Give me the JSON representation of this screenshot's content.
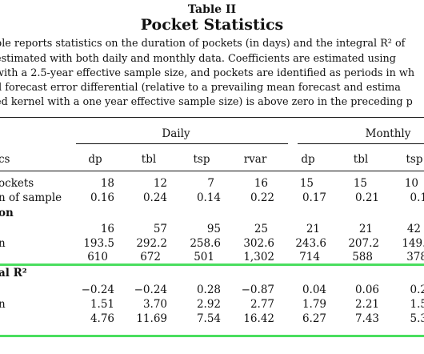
{
  "header": {
    "label": "Table II",
    "title": "Pocket Statistics"
  },
  "caption": [
    "ble reports statistics on the duration of pockets (in days) and the integral R² of",
    "estimated with both daily and monthly data. Coefficients are estimated using",
    "with a 2.5-year effective sample size, and pockets are identified as periods in wh",
    "d forecast error differential (relative to a prevailing mean forecast and estima",
    "ed kernel with a one year effective sample size) is above zero in the preceding p"
  ],
  "groups": {
    "daily": "Daily",
    "monthly": "Monthly"
  },
  "columns": [
    "dp",
    "tbl",
    "tsp",
    "rvar",
    "dp",
    "tbl",
    "tsp"
  ],
  "stub_header": "cs",
  "rows_top": [
    {
      "label": "ockets",
      "values": [
        "18",
        "12",
        "7",
        "16",
        "15",
        "15",
        "10"
      ]
    },
    {
      "label": "n of sample",
      "values": [
        "0.16",
        "0.24",
        "0.14",
        "0.22",
        "0.17",
        "0.21",
        "0.1"
      ]
    }
  ],
  "section1": "on",
  "rows_mid": [
    {
      "label": "",
      "values": [
        "16",
        "57",
        "95",
        "25",
        "21",
        "21",
        "42"
      ]
    },
    {
      "label": "n",
      "values": [
        "193.5",
        "292.2",
        "258.6",
        "302.6",
        "243.6",
        "207.2",
        "149.1"
      ]
    },
    {
      "label": "",
      "values": [
        "610",
        "672",
        "501",
        "1,302",
        "714",
        "588",
        "378"
      ]
    }
  ],
  "section2": "al R²",
  "rows_bot": [
    {
      "label": "",
      "values": [
        "−0.24",
        "−0.24",
        "0.28",
        "−0.87",
        "0.04",
        "0.06",
        "0.2"
      ]
    },
    {
      "label": "n",
      "values": [
        "1.51",
        "3.70",
        "2.92",
        "2.77",
        "1.79",
        "2.21",
        "1.5"
      ]
    },
    {
      "label": "",
      "values": [
        "4.76",
        "11.69",
        "7.54",
        "16.42",
        "6.27",
        "7.43",
        "5.3"
      ]
    }
  ]
}
